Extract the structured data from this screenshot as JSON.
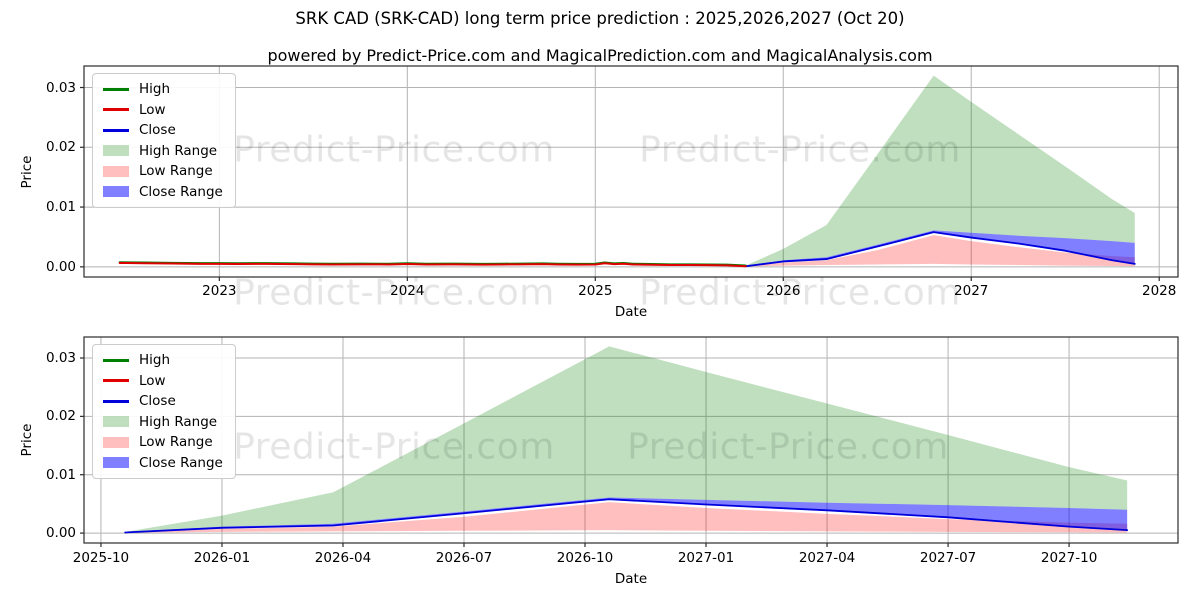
{
  "figure": {
    "title": "SRK CAD (SRK-CAD) long term price prediction : 2025,2026,2027 (Oct 20)",
    "subtitle": "powered by Predict-Price.com and MagicalPrediction.com and MagicalAnalysis.com",
    "watermark_text": "Predict-Price.com",
    "background": "#ffffff"
  },
  "colors": {
    "high_line": "#008000",
    "low_line": "#e00000",
    "close_line": "#0000dd",
    "high_fill": "rgba(0,128,0,0.25)",
    "low_fill": "rgba(255,0,0,0.25)",
    "close_fill": "rgba(0,0,255,0.5)",
    "grid": "#b3b3b3",
    "frame": "#2b2b2b",
    "text": "#000000"
  },
  "chart_data": [
    {
      "id": "overview",
      "type": "line",
      "xlabel": "Date",
      "ylabel": "Price",
      "xlim": [
        2022.28,
        2028.1
      ],
      "ylim": [
        -0.0017,
        0.0336
      ],
      "grid": true,
      "legend_position": "upper-left",
      "xticks": [
        {
          "v": 2023,
          "label": "2023"
        },
        {
          "v": 2024,
          "label": "2024"
        },
        {
          "v": 2025,
          "label": "2025"
        },
        {
          "v": 2026,
          "label": "2026"
        },
        {
          "v": 2027,
          "label": "2027"
        },
        {
          "v": 2028,
          "label": "2028"
        }
      ],
      "yticks": [
        {
          "v": 0.0,
          "label": "0.00"
        },
        {
          "v": 0.01,
          "label": "0.01"
        },
        {
          "v": 0.02,
          "label": "0.02"
        },
        {
          "v": 0.03,
          "label": "0.03"
        }
      ],
      "legend": [
        {
          "label": "High",
          "swatch": "line",
          "color": "high_line"
        },
        {
          "label": "Low",
          "swatch": "line",
          "color": "low_line"
        },
        {
          "label": "Close",
          "swatch": "line",
          "color": "close_line"
        },
        {
          "label": "High Range",
          "swatch": "patch",
          "color": "high_fill"
        },
        {
          "label": "Low Range",
          "swatch": "patch",
          "color": "low_fill"
        },
        {
          "label": "Close Range",
          "swatch": "patch",
          "color": "close_fill"
        }
      ],
      "series": [
        {
          "name": "High Range",
          "kind": "band",
          "color": "high_fill",
          "x": [
            2025.8,
            2026.0,
            2026.23,
            2026.5,
            2026.8,
            2027.0,
            2027.25,
            2027.5,
            2027.75,
            2027.87
          ],
          "upper": [
            0.0002,
            0.003,
            0.007,
            0.0188,
            0.032,
            0.0276,
            0.0222,
            0.0168,
            0.0113,
            0.009
          ],
          "lower": [
            0.0002,
            0.0011,
            0.0016,
            0.0037,
            0.0061,
            0.0057,
            0.0052,
            0.0048,
            0.0043,
            0.004
          ]
        },
        {
          "name": "Low Range",
          "kind": "band",
          "color": "low_fill",
          "x": [
            2025.8,
            2026.0,
            2026.23,
            2026.5,
            2026.8,
            2027.0,
            2027.25,
            2027.5,
            2027.75,
            2027.87
          ],
          "upper": [
            0.0001,
            0.0007,
            0.0011,
            0.0028,
            0.0053,
            0.0043,
            0.0033,
            0.0024,
            0.0018,
            0.0016
          ],
          "lower": [
            5e-05,
            0.0002,
            0.0003,
            0.0004,
            0.0005,
            0.0004,
            0.0003,
            0.0002,
            0.00015,
            0.0001
          ]
        },
        {
          "name": "Close Range",
          "kind": "band",
          "color": "close_fill",
          "x": [
            2025.8,
            2026.0,
            2026.23,
            2026.5,
            2026.8,
            2027.0,
            2027.25,
            2027.5,
            2027.75,
            2027.87
          ],
          "upper": [
            0.0002,
            0.0011,
            0.0016,
            0.0037,
            0.0061,
            0.0057,
            0.0052,
            0.0048,
            0.0043,
            0.004
          ],
          "lower": [
            0.0001,
            0.0009,
            0.0013,
            0.0034,
            0.0058,
            0.0049,
            0.0039,
            0.0027,
            0.0011,
            0.0005
          ]
        },
        {
          "name": "Close",
          "kind": "line",
          "color": "close_line",
          "width": 1.8,
          "x": [
            2022.47,
            2022.6,
            2022.75,
            2022.9,
            2023.0,
            2023.1,
            2023.25,
            2023.4,
            2023.5,
            2023.6,
            2023.75,
            2023.9,
            2024.0,
            2024.1,
            2024.25,
            2024.4,
            2024.5,
            2024.6,
            2024.72,
            2024.8,
            2024.9,
            2025.0,
            2025.05,
            2025.1,
            2025.15,
            2025.2,
            2025.3,
            2025.4,
            2025.5,
            2025.6,
            2025.7,
            2025.8,
            2026.0,
            2026.23,
            2026.5,
            2026.8,
            2027.0,
            2027.25,
            2027.5,
            2027.75,
            2027.87
          ],
          "y": [
            0.0007,
            0.00065,
            0.0006,
            0.00055,
            0.00055,
            0.00053,
            0.00055,
            0.0005,
            0.00047,
            0.00045,
            0.00047,
            0.00045,
            0.00053,
            0.00045,
            0.00047,
            0.00043,
            0.00045,
            0.00047,
            0.00051,
            0.00045,
            0.00043,
            0.00045,
            0.00065,
            0.0005,
            0.00057,
            0.00045,
            0.0004,
            0.00035,
            0.00035,
            0.00033,
            0.0003,
            0.0001,
            0.0009,
            0.0013,
            0.0034,
            0.0058,
            0.0049,
            0.0039,
            0.0027,
            0.0011,
            0.0005
          ]
        },
        {
          "name": "High",
          "kind": "line",
          "color": "high_line",
          "width": 2,
          "x": [
            2022.47,
            2022.6,
            2022.75,
            2022.9,
            2023.0,
            2023.1,
            2023.25,
            2023.4,
            2023.5,
            2023.6,
            2023.75,
            2023.9,
            2024.0,
            2024.1,
            2024.25,
            2024.4,
            2024.5,
            2024.6,
            2024.72,
            2024.8,
            2024.9,
            2025.0,
            2025.05,
            2025.1,
            2025.15,
            2025.2,
            2025.3,
            2025.4,
            2025.5,
            2025.6,
            2025.7,
            2025.8
          ],
          "y": [
            0.00077,
            0.00072,
            0.00067,
            0.00062,
            0.00062,
            0.0006,
            0.00062,
            0.00057,
            0.00054,
            0.00052,
            0.00054,
            0.00052,
            0.0006,
            0.00052,
            0.00054,
            0.0005,
            0.00052,
            0.00054,
            0.00058,
            0.00052,
            0.0005,
            0.00052,
            0.00072,
            0.00057,
            0.00064,
            0.00052,
            0.00047,
            0.00042,
            0.00042,
            0.0004,
            0.00037,
            0.00022
          ]
        },
        {
          "name": "Low",
          "kind": "line",
          "color": "low_line",
          "width": 2,
          "x": [
            2022.47,
            2022.6,
            2022.75,
            2022.9,
            2023.0,
            2023.1,
            2023.25,
            2023.4,
            2023.5,
            2023.6,
            2023.75,
            2023.9,
            2024.0,
            2024.1,
            2024.25,
            2024.4,
            2024.5,
            2024.6,
            2024.72,
            2024.8,
            2024.9,
            2025.0,
            2025.05,
            2025.1,
            2025.15,
            2025.2,
            2025.3,
            2025.4,
            2025.5,
            2025.6,
            2025.7,
            2025.8
          ],
          "y": [
            0.00065,
            0.0006,
            0.00055,
            0.0005,
            0.0005,
            0.00048,
            0.0005,
            0.00045,
            0.00042,
            0.0004,
            0.00042,
            0.0004,
            0.00048,
            0.0004,
            0.00042,
            0.00038,
            0.0004,
            0.00042,
            0.00046,
            0.0004,
            0.00038,
            0.0004,
            0.0006,
            0.00045,
            0.00052,
            0.0004,
            0.00035,
            0.0003,
            0.0003,
            0.00028,
            0.00025,
            0.0001
          ]
        }
      ]
    },
    {
      "id": "forecast",
      "type": "line",
      "xlabel": "Date",
      "ylabel": "Price",
      "xlim": [
        2025.715,
        2027.975
      ],
      "ylim": [
        -0.0017,
        0.0336
      ],
      "grid": true,
      "legend_position": "upper-left",
      "xticks": [
        {
          "v": 2025.75,
          "label": "2025-10"
        },
        {
          "v": 2026.0,
          "label": "2026-01"
        },
        {
          "v": 2026.25,
          "label": "2026-04"
        },
        {
          "v": 2026.5,
          "label": "2026-07"
        },
        {
          "v": 2026.75,
          "label": "2026-10"
        },
        {
          "v": 2027.0,
          "label": "2027-01"
        },
        {
          "v": 2027.25,
          "label": "2027-04"
        },
        {
          "v": 2027.5,
          "label": "2027-07"
        },
        {
          "v": 2027.75,
          "label": "2027-10"
        }
      ],
      "yticks": [
        {
          "v": 0.0,
          "label": "0.00"
        },
        {
          "v": 0.01,
          "label": "0.01"
        },
        {
          "v": 0.02,
          "label": "0.02"
        },
        {
          "v": 0.03,
          "label": "0.03"
        }
      ],
      "legend": [
        {
          "label": "High",
          "swatch": "line",
          "color": "high_line"
        },
        {
          "label": "Low",
          "swatch": "line",
          "color": "low_line"
        },
        {
          "label": "Close",
          "swatch": "line",
          "color": "close_line"
        },
        {
          "label": "High Range",
          "swatch": "patch",
          "color": "high_fill"
        },
        {
          "label": "Low Range",
          "swatch": "patch",
          "color": "low_fill"
        },
        {
          "label": "Close Range",
          "swatch": "patch",
          "color": "close_fill"
        }
      ],
      "series": [
        {
          "name": "High Range",
          "kind": "band",
          "color": "high_fill",
          "x": [
            2025.8,
            2026.0,
            2026.23,
            2026.5,
            2026.8,
            2027.0,
            2027.25,
            2027.5,
            2027.75,
            2027.87
          ],
          "upper": [
            0.0002,
            0.003,
            0.007,
            0.0188,
            0.032,
            0.0276,
            0.0222,
            0.0168,
            0.0113,
            0.009
          ],
          "lower": [
            0.0002,
            0.0011,
            0.0016,
            0.0037,
            0.0061,
            0.0057,
            0.0052,
            0.0048,
            0.0043,
            0.004
          ]
        },
        {
          "name": "Low Range",
          "kind": "band",
          "color": "low_fill",
          "x": [
            2025.8,
            2026.0,
            2026.23,
            2026.5,
            2026.8,
            2027.0,
            2027.25,
            2027.5,
            2027.75,
            2027.87
          ],
          "upper": [
            0.0001,
            0.0007,
            0.0011,
            0.0028,
            0.0053,
            0.0043,
            0.0033,
            0.0024,
            0.0018,
            0.0016
          ],
          "lower": [
            5e-05,
            0.0002,
            0.0003,
            0.0004,
            0.0005,
            0.0004,
            0.0003,
            0.0002,
            0.00015,
            0.0001
          ]
        },
        {
          "name": "Close Range",
          "kind": "band",
          "color": "close_fill",
          "x": [
            2025.8,
            2026.0,
            2026.23,
            2026.5,
            2026.8,
            2027.0,
            2027.25,
            2027.5,
            2027.75,
            2027.87
          ],
          "upper": [
            0.0002,
            0.0011,
            0.0016,
            0.0037,
            0.0061,
            0.0057,
            0.0052,
            0.0048,
            0.0043,
            0.004
          ],
          "lower": [
            0.0001,
            0.0009,
            0.0013,
            0.0034,
            0.0058,
            0.0049,
            0.0039,
            0.0027,
            0.0011,
            0.0005
          ]
        },
        {
          "name": "Close",
          "kind": "line",
          "color": "close_line",
          "width": 1.8,
          "x": [
            2025.8,
            2026.0,
            2026.23,
            2026.5,
            2026.8,
            2027.0,
            2027.25,
            2027.5,
            2027.75,
            2027.87
          ],
          "y": [
            0.0001,
            0.0009,
            0.0013,
            0.0034,
            0.0058,
            0.0049,
            0.0039,
            0.0027,
            0.0011,
            0.0005
          ]
        }
      ]
    }
  ]
}
